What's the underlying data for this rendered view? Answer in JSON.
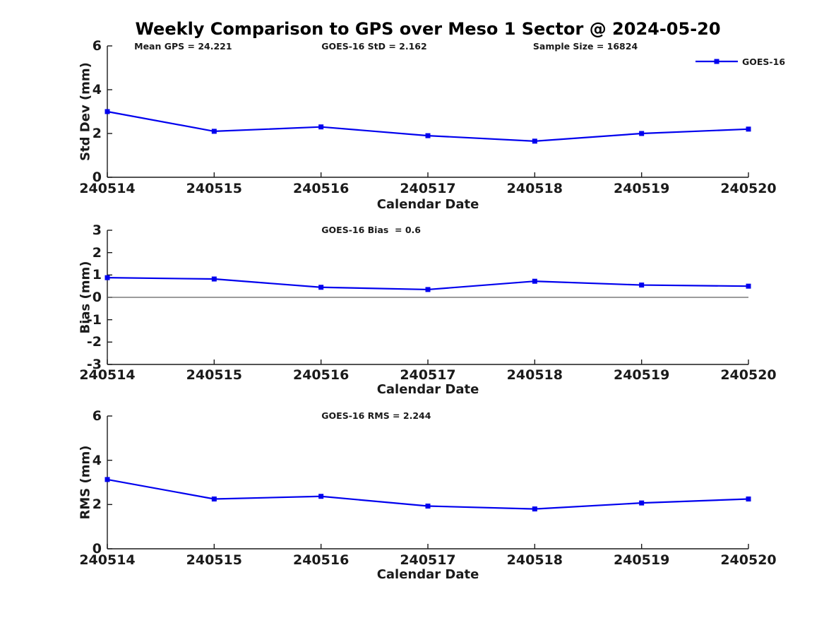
{
  "page_title": "Weekly Comparison to GPS over Meso 1 Sector @ 2024-05-20",
  "legend": {
    "label": "GOES-16",
    "position": "top-right",
    "marker": "square"
  },
  "colors": {
    "series": "#0000EE",
    "axis": "#1a1a1a",
    "text": "#1a1a1a",
    "zero_line": "#606060",
    "background": "#ffffff"
  },
  "chart_data": [
    {
      "type": "line",
      "title": "",
      "ylabel": "Std Dev (mm)",
      "xlabel": "Calendar Date",
      "categories": [
        "240514",
        "240515",
        "240516",
        "240517",
        "240518",
        "240519",
        "240520"
      ],
      "series": [
        {
          "name": "GOES-16",
          "values": [
            3.0,
            2.1,
            2.3,
            1.9,
            1.65,
            2.0,
            2.2
          ]
        }
      ],
      "ylim": [
        0,
        6
      ],
      "yticks": [
        0,
        2,
        4,
        6
      ],
      "annotations": [
        "Mean GPS = 24.221",
        "GOES-16 StD = 2.162",
        "Sample Size = 16824"
      ],
      "grid": false,
      "legend_position": "top-right",
      "zero_line": false
    },
    {
      "type": "line",
      "title": "",
      "ylabel": "Bias (mm)",
      "xlabel": "Calendar Date",
      "categories": [
        "240514",
        "240515",
        "240516",
        "240517",
        "240518",
        "240519",
        "240520"
      ],
      "series": [
        {
          "name": "GOES-16",
          "values": [
            0.88,
            0.82,
            0.45,
            0.35,
            0.72,
            0.55,
            0.5
          ]
        }
      ],
      "ylim": [
        -3,
        3
      ],
      "yticks": [
        3,
        2,
        1,
        0,
        -1,
        -2,
        -3
      ],
      "annotations": [
        "GOES-16 Bias  = 0.6"
      ],
      "grid": false,
      "zero_line": true
    },
    {
      "type": "line",
      "title": "",
      "ylabel": "RMS (mm)",
      "xlabel": "Calendar Date",
      "categories": [
        "240514",
        "240515",
        "240516",
        "240517",
        "240518",
        "240519",
        "240520"
      ],
      "series": [
        {
          "name": "GOES-16",
          "values": [
            3.13,
            2.25,
            2.37,
            1.93,
            1.8,
            2.07,
            2.25
          ]
        }
      ],
      "ylim": [
        0,
        6
      ],
      "yticks": [
        0,
        2,
        4,
        6
      ],
      "annotations": [
        "GOES-16 RMS = 2.244"
      ],
      "grid": false,
      "zero_line": false
    }
  ]
}
